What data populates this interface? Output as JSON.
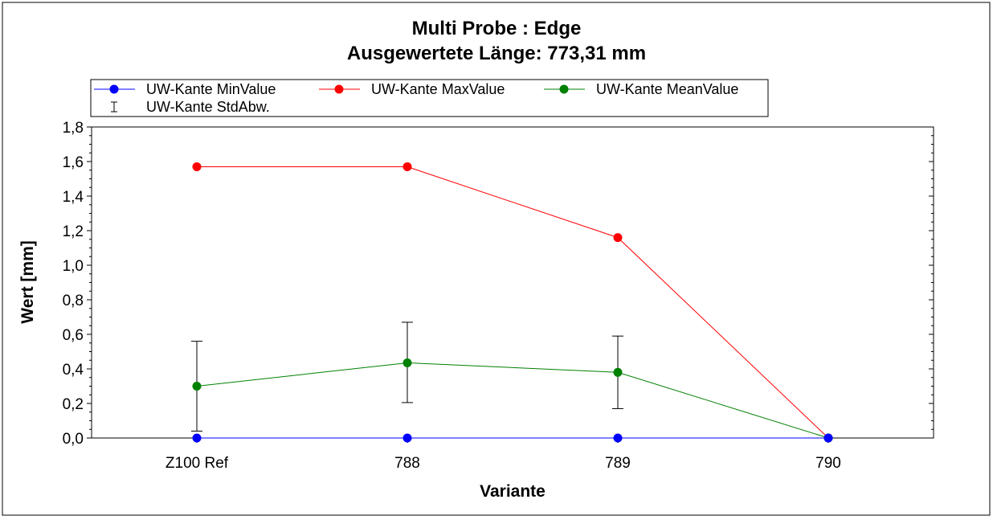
{
  "chart_data": {
    "type": "line",
    "title": "Multi Probe : Edge",
    "subtitle": "Ausgewertete Länge: 773,31 mm",
    "xlabel": "Variante",
    "ylabel": "Wert [mm]",
    "categories": [
      "Z100 Ref",
      "788",
      "789",
      "790"
    ],
    "ylim": [
      0,
      1.8
    ],
    "yticks": [
      "0,0",
      "0,2",
      "0,4",
      "0,6",
      "0,8",
      "1,0",
      "1,2",
      "1,4",
      "1,6",
      "1,8"
    ],
    "legend_position": "top-left",
    "grid": false,
    "series": [
      {
        "name": "UW-Kante MinValue",
        "color": "#0000ff",
        "values": [
          0.0,
          0.0,
          0.0,
          0.0
        ]
      },
      {
        "name": "UW-Kante MaxValue",
        "color": "#ff0000",
        "values": [
          1.57,
          1.57,
          1.16,
          0.0
        ]
      },
      {
        "name": "UW-Kante MeanValue",
        "color": "#008000",
        "values": [
          0.3,
          0.435,
          0.38,
          0.0
        ]
      }
    ],
    "error_bars": {
      "name": "UW-Kante StdAbw.",
      "series": "UW-Kante MeanValue",
      "low": [
        0.04,
        0.205,
        0.17,
        0.0
      ],
      "high": [
        0.56,
        0.67,
        0.59,
        0.0
      ]
    }
  }
}
